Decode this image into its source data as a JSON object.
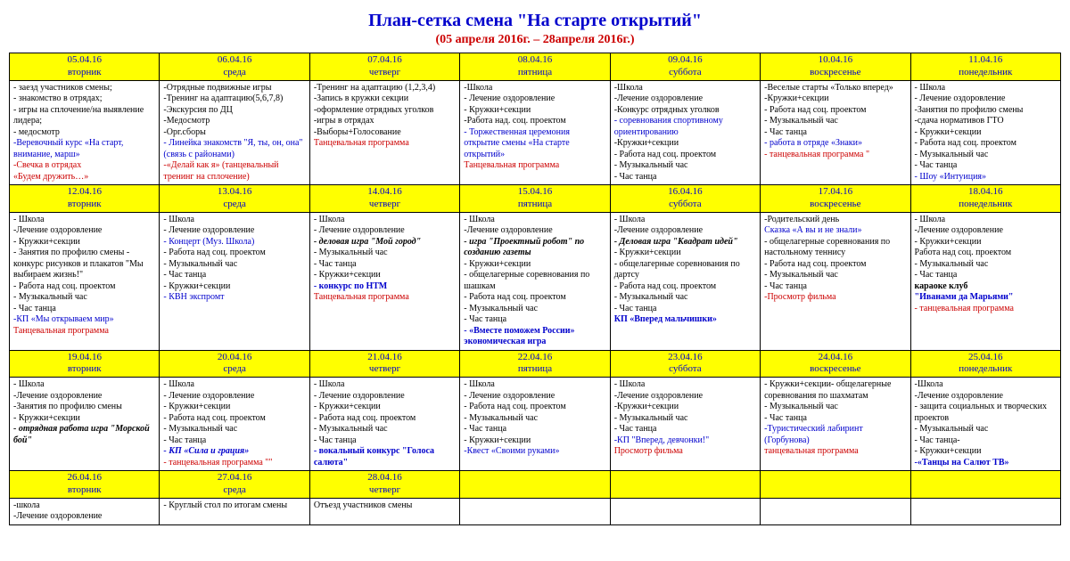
{
  "title": "План-сетка смена \"На старте открытий\"",
  "subtitle": "(05 апреля 2016г. – 28апреля 2016г.)",
  "colors": {
    "header_bg": "#ffff00",
    "title": "#0000cc",
    "subtitle": "#cc0000",
    "border": "#000000"
  },
  "rows": [
    {
      "days": [
        {
          "date": "05.04.16",
          "dow": "вторник",
          "items": [
            {
              "t": "- заезд участников смены;",
              "c": "black"
            },
            {
              "t": "- знакомство в отрядах;",
              "c": "black"
            },
            {
              "t": "- игры на сплочение/на выявление лидера;",
              "c": "black"
            },
            {
              "t": "- медосмотр",
              "c": "black"
            },
            {
              "t": "-Веревочный курс «На старт, внимание, марш»",
              "c": "blue"
            },
            {
              "t": "-Свечка в отрядах",
              "c": "red"
            },
            {
              "t": "«Будем дружить…»",
              "c": "red"
            }
          ]
        },
        {
          "date": "06.04.16",
          "dow": "среда",
          "items": [
            {
              "t": "-Отрядные подвижные игры",
              "c": "black"
            },
            {
              "t": "-Тренинг на адаптацию(5,6,7,8)",
              "c": "black"
            },
            {
              "t": "-Экскурсия по ДЦ",
              "c": "black"
            },
            {
              "t": "-Медосмотр",
              "c": "black"
            },
            {
              "t": "-Орг.сборы",
              "c": "black"
            },
            {
              "t": "- Линейка знакомств \"Я, ты, он, она\"(связь с районами)",
              "c": "blue"
            },
            {
              "t": "-«Делай как я» (танцевальный тренинг на сплочение)",
              "c": "red"
            }
          ]
        },
        {
          "date": "07.04.16",
          "dow": "четверг",
          "items": [
            {
              "t": "-Тренинг на адаптацию (1,2,3,4)",
              "c": "black"
            },
            {
              "t": "-Запись в кружки секции",
              "c": "black"
            },
            {
              "t": "-оформление отрядных уголков",
              "c": "black"
            },
            {
              "t": "-игры в отрядах",
              "c": "black"
            },
            {
              "t": "-Выборы+Голосование",
              "c": "black"
            },
            {
              "t": "Танцевальная программа",
              "c": "red"
            }
          ]
        },
        {
          "date": "08.04.16",
          "dow": "пятница",
          "items": [
            {
              "t": "-Школа",
              "c": "black"
            },
            {
              "t": "- Лечение оздоровление",
              "c": "black"
            },
            {
              "t": "- Кружки+секции",
              "c": "black"
            },
            {
              "t": "-Работа над. соц. проектом",
              "c": "black"
            },
            {
              "t": "- Торжественная церемония открытие смены «На старте открытий»",
              "c": "blue"
            },
            {
              "t": "Танцевальная программа",
              "c": "red"
            }
          ]
        },
        {
          "date": "09.04.16",
          "dow": "суббота",
          "items": [
            {
              "t": "-Школа",
              "c": "black"
            },
            {
              "t": "-Лечение оздоровление",
              "c": "black"
            },
            {
              "t": "-Конкурс отрядных уголков",
              "c": "black"
            },
            {
              "t": "- соревнования спортивному ориентированию",
              "c": "blue"
            },
            {
              "t": "-Кружки+секции",
              "c": "black"
            },
            {
              "t": "- Работа над соц. проектом",
              "c": "black"
            },
            {
              "t": "- Музыкальный час",
              "c": "black"
            },
            {
              "t": "- Час танца",
              "c": "black"
            }
          ]
        },
        {
          "date": "10.04.16",
          "dow": "воскресенье",
          "items": [
            {
              "t": "-Веселые старты «Только вперед»",
              "c": "black"
            },
            {
              "t": "-Кружки+секции",
              "c": "black"
            },
            {
              "t": "- Работа над соц. проектом",
              "c": "black"
            },
            {
              "t": "- Музыкальный час",
              "c": "black"
            },
            {
              "t": "- Час танца",
              "c": "black"
            },
            {
              "t": "- работа в отряде «Знаки»",
              "c": "blue"
            },
            {
              "t": "- танцевальная программа \"",
              "c": "red"
            }
          ]
        },
        {
          "date": "11.04.16",
          "dow": "понедельник",
          "items": [
            {
              "t": "- Школа",
              "c": "black"
            },
            {
              "t": "- Лечение оздоровление",
              "c": "black"
            },
            {
              "t": "-Занятия по профилю смены",
              "c": "black"
            },
            {
              "t": "-сдача нормативов ГТО",
              "c": "black"
            },
            {
              "t": "- Кружки+секции",
              "c": "black"
            },
            {
              "t": "- Работа над соц. проектом",
              "c": "black"
            },
            {
              "t": "- Музыкальный час",
              "c": "black"
            },
            {
              "t": "- Час танца",
              "c": "black"
            },
            {
              "t": "- Шоу «Интуиция»",
              "c": "blue"
            }
          ]
        }
      ]
    },
    {
      "days": [
        {
          "date": "12.04.16",
          "dow": "вторник",
          "items": [
            {
              "t": "- Школа",
              "c": "black"
            },
            {
              "t": "-Лечение оздоровление",
              "c": "black"
            },
            {
              "t": "- Кружки+секции",
              "c": "black"
            },
            {
              "t": "- Занятия по профилю смены - конкурс рисунков и плакатов \"Мы выбираем жизнь!\"",
              "c": "black"
            },
            {
              "t": "- Работа над соц. проектом",
              "c": "black"
            },
            {
              "t": "- Музыкальный час",
              "c": "black"
            },
            {
              "t": "- Час танца",
              "c": "black"
            },
            {
              "t": "-КП «Мы открываем мир»",
              "c": "blue"
            },
            {
              "t": "Танцевальная программа",
              "c": "red"
            }
          ]
        },
        {
          "date": "13.04.16",
          "dow": "среда",
          "items": [
            {
              "t": "- Школа",
              "c": "black"
            },
            {
              "t": "- Лечение оздоровление",
              "c": "black"
            },
            {
              "t": "- Концерт (Муз. Школа)",
              "c": "blue"
            },
            {
              "t": "- Работа над соц. проектом",
              "c": "black"
            },
            {
              "t": "- Музыкальный час",
              "c": "black"
            },
            {
              "t": "- Час танца",
              "c": "black"
            },
            {
              "t": "- Кружки+секции",
              "c": "black"
            },
            {
              "t": "- КВН экспромт",
              "c": "blue"
            }
          ]
        },
        {
          "date": "14.04.16",
          "dow": "четверг",
          "items": [
            {
              "t": "- Школа",
              "c": "black"
            },
            {
              "t": "- Лечение оздоровление",
              "c": "black"
            },
            {
              "t": "- деловая игра \"Мой город\"",
              "c": "black",
              "b": true,
              "i": true
            },
            {
              "t": "- Музыкальный час",
              "c": "black"
            },
            {
              "t": "- Час танца",
              "c": "black"
            },
            {
              "t": "- Кружки+секции",
              "c": "black"
            },
            {
              "t": "- конкурс по НТМ",
              "c": "blue",
              "b": true
            },
            {
              "t": "Танцевальная программа",
              "c": "red"
            }
          ]
        },
        {
          "date": "15.04.16",
          "dow": "пятница",
          "items": [
            {
              "t": "- Школа",
              "c": "black"
            },
            {
              "t": "-Лечение оздоровление",
              "c": "black"
            },
            {
              "t": "- игра \"Проектный робот\" по созданию газеты",
              "c": "black",
              "b": true,
              "i": true
            },
            {
              "t": "- Кружки+секции",
              "c": "black"
            },
            {
              "t": "- общелагерные соревнования по шашкам",
              "c": "black"
            },
            {
              "t": "- Работа над соц. проектом",
              "c": "black"
            },
            {
              "t": "- Музыкальный час",
              "c": "black"
            },
            {
              "t": "- Час танца",
              "c": "black"
            },
            {
              "t": "- «Вместе поможем России» экономическая игра",
              "c": "blue",
              "b": true
            }
          ]
        },
        {
          "date": "16.04.16",
          "dow": "суббота",
          "items": [
            {
              "t": "- Школа",
              "c": "black"
            },
            {
              "t": "-Лечение оздоровление",
              "c": "black"
            },
            {
              "t": "- Деловая игра \"Квадрат идей\"",
              "c": "black",
              "b": true,
              "i": true
            },
            {
              "t": "- Кружки+секции",
              "c": "black"
            },
            {
              "t": "- общелагерные соревнования по дартсу",
              "c": "black"
            },
            {
              "t": "- Работа над соц. проектом",
              "c": "black"
            },
            {
              "t": "- Музыкальный час",
              "c": "black"
            },
            {
              "t": "- Час танца",
              "c": "black"
            },
            {
              "t": "КП «Вперед мальчишки»",
              "c": "blue",
              "b": true
            }
          ]
        },
        {
          "date": "17.04.16",
          "dow": "воскресенье",
          "items": [
            {
              "t": "-Родительский день",
              "c": "black"
            },
            {
              "t": "Сказка «А вы и не знали»",
              "c": "blue"
            },
            {
              "t": "- общелагерные соревнования по настольному теннису",
              "c": "black"
            },
            {
              "t": "- Работа над соц. проектом",
              "c": "black"
            },
            {
              "t": "- Музыкальный час",
              "c": "black"
            },
            {
              "t": "- Час танца",
              "c": "black"
            },
            {
              "t": "-Просмотр фильма",
              "c": "red"
            }
          ]
        },
        {
          "date": "18.04.16",
          "dow": "понедельник",
          "items": [
            {
              "t": "- Школа",
              "c": "black"
            },
            {
              "t": "-Лечение оздоровление",
              "c": "black"
            },
            {
              "t": "- Кружки+секции",
              "c": "black"
            },
            {
              "t": "Работа над соц. проектом",
              "c": "black"
            },
            {
              "t": "- Музыкальный час",
              "c": "black"
            },
            {
              "t": "- Час танца",
              "c": "black"
            },
            {
              "t": "караоке клуб",
              "c": "black",
              "b": true
            },
            {
              "t": "\"Иванами да Марьями\"",
              "c": "blue",
              "b": true
            },
            {
              "t": "- танцевальная программа",
              "c": "red"
            }
          ]
        }
      ]
    },
    {
      "days": [
        {
          "date": "19.04.16",
          "dow": "вторник",
          "items": [
            {
              "t": "- Школа",
              "c": "black"
            },
            {
              "t": "-Лечение оздоровление",
              "c": "black"
            },
            {
              "t": "-Занятия по профилю смены",
              "c": "black"
            },
            {
              "t": "- Кружки+секции",
              "c": "black"
            },
            {
              "t": "- отрядная работа игра \"Морской бой\"",
              "c": "black",
              "b": true,
              "i": true
            }
          ]
        },
        {
          "date": "20.04.16",
          "dow": "среда",
          "items": [
            {
              "t": "- Школа",
              "c": "black"
            },
            {
              "t": "- Лечение оздоровление",
              "c": "black"
            },
            {
              "t": "- Кружки+секции",
              "c": "black"
            },
            {
              "t": "- Работа над соц. проектом",
              "c": "black"
            },
            {
              "t": "- Музыкальный час",
              "c": "black"
            },
            {
              "t": "- Час танца",
              "c": "black"
            },
            {
              "t": "- КП «Сила и грация»",
              "c": "blue",
              "b": true,
              "i": true
            },
            {
              "t": "- танцевальная программа \"\"",
              "c": "red"
            }
          ]
        },
        {
          "date": "21.04.16",
          "dow": "четверг",
          "items": [
            {
              "t": "- Школа",
              "c": "black"
            },
            {
              "t": "- Лечение оздоровление",
              "c": "black"
            },
            {
              "t": "- Кружки+секции",
              "c": "black"
            },
            {
              "t": "- Работа над соц. проектом",
              "c": "black"
            },
            {
              "t": "- Музыкальный час",
              "c": "black"
            },
            {
              "t": "- Час танца",
              "c": "black"
            },
            {
              "t": "- вокальный конкурс \"Голоса салюта\"",
              "c": "blue",
              "b": true
            }
          ]
        },
        {
          "date": "22.04.16",
          "dow": "пятница",
          "items": [
            {
              "t": "- Школа",
              "c": "black"
            },
            {
              "t": "- Лечение оздоровление",
              "c": "black"
            },
            {
              "t": "- Работа над соц. проектом",
              "c": "black"
            },
            {
              "t": "- Музыкальный час",
              "c": "black"
            },
            {
              "t": "- Час танца",
              "c": "black"
            },
            {
              "t": "- Кружки+секции",
              "c": "black"
            },
            {
              "t": "-Квест «Своими руками»",
              "c": "blue"
            }
          ]
        },
        {
          "date": "23.04.16",
          "dow": "суббота",
          "items": [
            {
              "t": "- Школа",
              "c": "black"
            },
            {
              "t": "-Лечение оздоровление",
              "c": "black"
            },
            {
              "t": "-Кружки+секции",
              "c": "black"
            },
            {
              "t": "- Музыкальный час",
              "c": "black"
            },
            {
              "t": "- Час танца",
              "c": "black"
            },
            {
              "t": "-КП \"Вперед, девчонки!\"",
              "c": "blue"
            },
            {
              "t": "Просмотр фильма",
              "c": "red"
            }
          ]
        },
        {
          "date": "24.04.16",
          "dow": "воскресенье",
          "items": [
            {
              "t": "- Кружки+секции- общелагерные соревнования по шахматам",
              "c": "black"
            },
            {
              "t": "- Музыкальный час",
              "c": "black"
            },
            {
              "t": "- Час танца",
              "c": "black"
            },
            {
              "t": "-Туристический лабиринт (Горбунова)",
              "c": "blue"
            },
            {
              "t": "танцевальная программа",
              "c": "red"
            }
          ]
        },
        {
          "date": "25.04.16",
          "dow": "понедельник",
          "items": [
            {
              "t": "-Школа",
              "c": "black"
            },
            {
              "t": "-Лечение оздоровление",
              "c": "black"
            },
            {
              "t": "- защита социальных и творческих проектов",
              "c": "black"
            },
            {
              "t": "- Музыкальный час",
              "c": "black"
            },
            {
              "t": "- Час танца-",
              "c": "black"
            },
            {
              "t": "- Кружки+секции",
              "c": "black"
            },
            {
              "t": "-«Танцы на Салют ТВ»",
              "c": "blue",
              "b": true
            }
          ]
        }
      ]
    },
    {
      "days": [
        {
          "date": "26.04.16",
          "dow": "вторник",
          "items": [
            {
              "t": "-школа",
              "c": "black"
            },
            {
              "t": "-Лечение оздоровление",
              "c": "black"
            }
          ]
        },
        {
          "date": "27.04.16",
          "dow": "среда",
          "items": [
            {
              "t": "- Круглый стол по итогам смены",
              "c": "black"
            }
          ]
        },
        {
          "date": "28.04.16",
          "dow": "четверг",
          "items": [
            {
              "t": "Отъезд участников смены",
              "c": "black"
            }
          ]
        },
        {
          "date": "",
          "dow": "",
          "items": []
        },
        {
          "date": "",
          "dow": "",
          "items": []
        },
        {
          "date": "",
          "dow": "",
          "items": []
        },
        {
          "date": "",
          "dow": "",
          "items": []
        }
      ]
    }
  ]
}
